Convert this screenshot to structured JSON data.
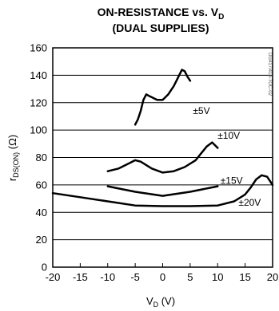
{
  "chart_data": {
    "type": "line",
    "title": "ON-RESISTANCE vs. V",
    "title_sub": "D",
    "subtitle": "(DUAL SUPPLIES)",
    "xlabel": "V",
    "xlabel_sub": "D",
    "xlabel_unit": " (V)",
    "ylabel": "r",
    "ylabel_sub": "DS(ON)",
    "ylabel_unit": " (Ω)",
    "xlim": [
      -20,
      20
    ],
    "ylim": [
      0,
      160
    ],
    "x_ticks": [
      "-20",
      "-15",
      "-10",
      "-5",
      "0",
      "5",
      "10",
      "15",
      "20"
    ],
    "y_ticks": [
      "0",
      "20",
      "40",
      "60",
      "80",
      "100",
      "120",
      "140",
      "160"
    ],
    "grid": true,
    "watermark": "DG417/418-TOC-02",
    "series": [
      {
        "name": "±5V",
        "x": [
          -5,
          -4.5,
          -4,
          -3.5,
          -3,
          -2.5,
          -2,
          -1.5,
          -1,
          -0.5,
          0,
          0.5,
          1,
          1.5,
          2,
          2.5,
          3,
          3.5,
          4,
          4.5,
          5
        ],
        "y": [
          104,
          108,
          114,
          122,
          126,
          125,
          124,
          123,
          122,
          122,
          122,
          124,
          126,
          129,
          132,
          136,
          140,
          144,
          143,
          139,
          136
        ]
      },
      {
        "name": "±10V",
        "x": [
          -10,
          -8,
          -6,
          -5,
          -4,
          -2,
          0,
          2,
          4,
          6,
          7,
          8,
          9,
          10
        ],
        "y": [
          70,
          72,
          76,
          78,
          77,
          72,
          69,
          70,
          73,
          78,
          83,
          88,
          91,
          87
        ]
      },
      {
        "name": "±15V",
        "x": [
          -10,
          -5,
          0,
          5,
          10
        ],
        "y": [
          59,
          55,
          52,
          55,
          59
        ]
      },
      {
        "name": "±20V",
        "x": [
          -20,
          -15,
          -10,
          -5,
          0,
          5,
          10,
          13,
          15,
          16,
          17,
          18,
          19,
          20
        ],
        "y": [
          54,
          51,
          48,
          45,
          44.5,
          44.5,
          45,
          48,
          53,
          58,
          64,
          67,
          66,
          60
        ]
      }
    ],
    "annotations": [
      {
        "text": "±5V",
        "x": 5.5,
        "y": 114
      },
      {
        "text": "±10V",
        "x": 10,
        "y": 96
      },
      {
        "text": "±15V",
        "x": 10.5,
        "y": 63
      },
      {
        "text": "±20V",
        "x": 13.8,
        "y": 47
      }
    ]
  }
}
